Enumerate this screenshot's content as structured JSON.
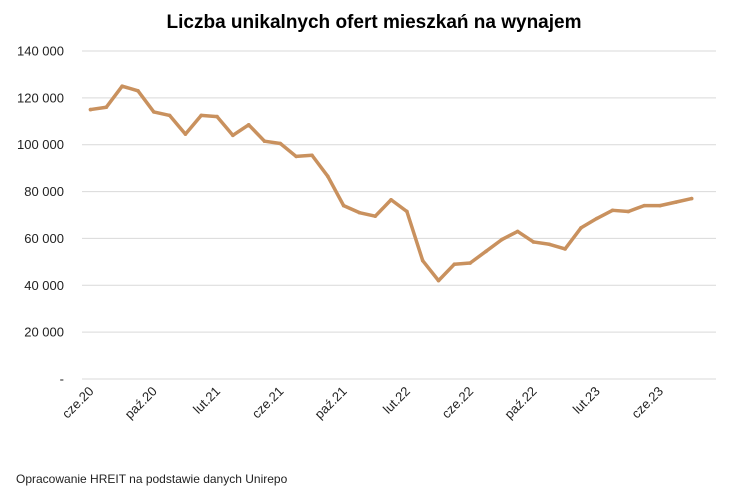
{
  "source_note": "Opracowanie HREIT na podstawie danych Unirepo",
  "chart_data": {
    "type": "line",
    "title": "Liczba unikalnych ofert mieszkań na wynajem",
    "ylim": [
      0,
      140000
    ],
    "y_ticks": [
      0,
      20000,
      40000,
      60000,
      80000,
      100000,
      120000,
      140000
    ],
    "y_tick_labels": [
      "-",
      "20 000",
      "40 000",
      "60 000",
      "80 000",
      "100 000",
      "120 000",
      "140 000"
    ],
    "x_tick_labels": [
      "cze.20",
      "paź.20",
      "lut.21",
      "cze.21",
      "paź.21",
      "lut.22",
      "cze.22",
      "paź.22",
      "lut.23",
      "cze.23"
    ],
    "x_tick_every": 4,
    "grid": true,
    "legend": "none",
    "line_color": "#C9915E",
    "series": [
      {
        "values": [
          115000,
          116000,
          125000,
          123000,
          114000,
          112500,
          104500,
          112500,
          112000,
          104000,
          108500,
          101500,
          100500,
          95000,
          95500,
          86500,
          74000,
          71000,
          69500,
          76500,
          71500,
          50500,
          42000,
          49000,
          49500,
          54500,
          59500,
          63000,
          58500,
          57500,
          55500,
          64500,
          68500,
          72000,
          71500,
          74000,
          74000,
          75500,
          77000
        ]
      }
    ]
  }
}
